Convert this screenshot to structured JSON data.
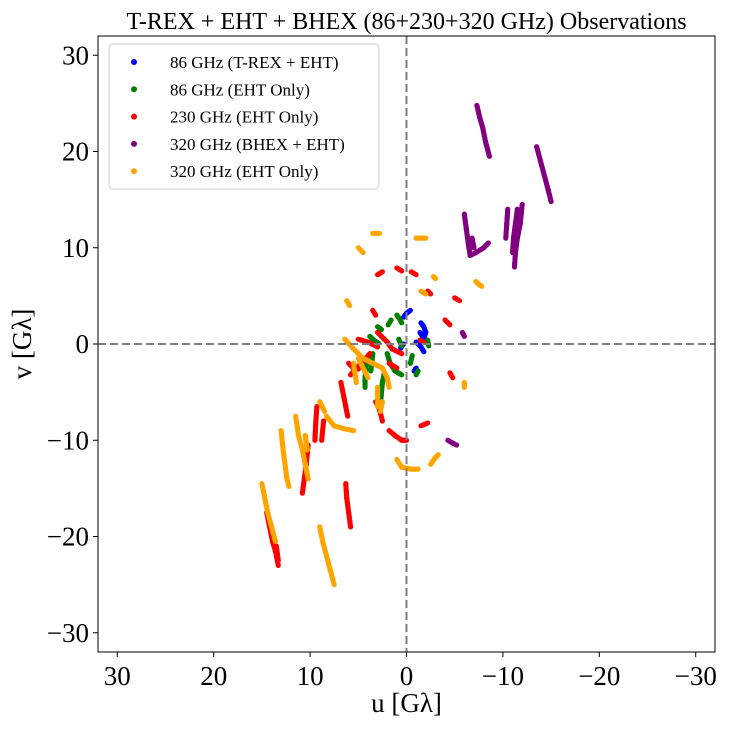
{
  "chart_data": {
    "type": "scatter",
    "title": "T-REX + EHT + BHEX (86+230+320 GHz) Observations",
    "xlabel": "u [Gλ]",
    "ylabel": "v [Gλ]",
    "xlim": [
      32,
      -32
    ],
    "ylim": [
      -32,
      32
    ],
    "xticks": [
      30,
      20,
      10,
      0,
      -10,
      -20,
      -30
    ],
    "yticks": [
      30,
      20,
      10,
      0,
      -10,
      -20,
      -30
    ],
    "xtick_labels": [
      "30",
      "20",
      "10",
      "0",
      "−10",
      "−20",
      "−30"
    ],
    "ytick_labels": [
      "30",
      "20",
      "10",
      "0",
      "−10",
      "−20",
      "−30"
    ],
    "grid": false,
    "reference_lines": [
      {
        "axis": "x",
        "value": 0,
        "style": "dashed"
      },
      {
        "axis": "y",
        "value": 0,
        "style": "dashed"
      }
    ],
    "legend_position": "top-left",
    "series": [
      {
        "name": "86 GHz (T-REX + EHT)",
        "color": "#0000ff",
        "tracks": [
          [
            [
              -1.5,
              2.2
            ],
            [
              -1.8,
              1.8
            ],
            [
              -2.0,
              1.2
            ],
            [
              -1.8,
              0.6
            ]
          ],
          [
            [
              -0.4,
              3.5
            ],
            [
              0.0,
              3.2
            ],
            [
              0.3,
              2.8
            ]
          ],
          [
            [
              -1.0,
              0.2
            ],
            [
              -1.5,
              -0.3
            ],
            [
              -1.8,
              -0.8
            ]
          ],
          [
            [
              -0.8,
              -2.8
            ],
            [
              -1.0,
              -2.5
            ]
          ],
          [
            [
              -1.4,
              1.2
            ],
            [
              -1.6,
              0.9
            ],
            [
              -1.7,
              0.7
            ]
          ],
          [
            [
              0.3,
              0.0
            ],
            [
              0.6,
              -0.4
            ]
          ]
        ]
      },
      {
        "name": "86 GHz (EHT Only)",
        "color": "#008000",
        "tracks": [
          [
            [
              1.0,
              3.0
            ],
            [
              0.7,
              2.6
            ],
            [
              0.5,
              2.2
            ]
          ],
          [
            [
              3.8,
              0.8
            ],
            [
              3.4,
              0.4
            ],
            [
              2.9,
              0.1
            ]
          ],
          [
            [
              4.1,
              -1.5
            ],
            [
              4.2,
              -2.5
            ],
            [
              4.3,
              -3.5
            ],
            [
              4.3,
              -4.5
            ]
          ],
          [
            [
              3.5,
              -1.0
            ],
            [
              3.6,
              -2.0
            ],
            [
              3.7,
              -2.8
            ]
          ],
          [
            [
              2.3,
              -3.0
            ],
            [
              2.5,
              -4.0
            ],
            [
              2.6,
              -5.0
            ],
            [
              2.7,
              -6.5
            ]
          ],
          [
            [
              2.0,
              -1.0
            ],
            [
              1.7,
              -2.0
            ],
            [
              1.2,
              -2.8
            ],
            [
              0.5,
              -3.2
            ]
          ],
          [
            [
              1.9,
              2.0
            ],
            [
              1.6,
              2.5
            ]
          ],
          [
            [
              0.8,
              0.5
            ],
            [
              0.5,
              -0.2
            ]
          ],
          [
            [
              -0.6,
              -1.2
            ],
            [
              -0.4,
              -2.0
            ]
          ],
          [
            [
              -2.2,
              0.4
            ],
            [
              -2.3,
              -0.2
            ]
          ],
          [
            [
              3.0,
              1.8
            ],
            [
              2.6,
              1.5
            ]
          ],
          [
            [
              -1.2,
              -2.8
            ],
            [
              -1.0,
              -3.2
            ]
          ]
        ]
      },
      {
        "name": "230 GHz (EHT Only)",
        "color": "#ff0000",
        "tracks": [
          [
            [
              14.5,
              -17.5
            ],
            [
              14.2,
              -19.0
            ],
            [
              13.9,
              -20.5
            ],
            [
              13.6,
              -21.5
            ],
            [
              13.3,
              -23.0
            ]
          ],
          [
            [
              13.5,
              -21.0
            ],
            [
              13.3,
              -22.5
            ]
          ],
          [
            [
              10.2,
              -10.5
            ],
            [
              10.4,
              -12.5
            ],
            [
              10.6,
              -14.0
            ],
            [
              10.8,
              -15.5
            ]
          ],
          [
            [
              9.3,
              -6.5
            ],
            [
              9.4,
              -8.0
            ],
            [
              9.5,
              -10.0
            ]
          ],
          [
            [
              8.6,
              -8.0
            ],
            [
              8.8,
              -10.0
            ]
          ],
          [
            [
              6.3,
              -14.5
            ],
            [
              6.2,
              -16.0
            ],
            [
              6.0,
              -17.5
            ],
            [
              5.8,
              -19.0
            ]
          ],
          [
            [
              6.8,
              -4.0
            ],
            [
              6.5,
              -5.5
            ],
            [
              6.3,
              -6.5
            ],
            [
              6.1,
              -7.5
            ]
          ],
          [
            [
              5.8,
              -3.2
            ],
            [
              5.2,
              -2.5
            ],
            [
              4.5,
              -1.8
            ],
            [
              3.8,
              -1.0
            ]
          ],
          [
            [
              5.0,
              0.5
            ],
            [
              4.0,
              0.2
            ],
            [
              3.0,
              -0.3
            ]
          ],
          [
            [
              3.5,
              3.5
            ],
            [
              3.2,
              3.0
            ]
          ],
          [
            [
              3.2,
              -6.0
            ],
            [
              2.9,
              -6.5
            ],
            [
              2.7,
              -7.2
            ],
            [
              2.5,
              -8.0
            ]
          ],
          [
            [
              1.8,
              -9.0
            ],
            [
              1.2,
              -9.5
            ],
            [
              0.5,
              -10.0
            ],
            [
              0.0,
              -10.0
            ]
          ],
          [
            [
              -1.5,
              -8.5
            ],
            [
              -2.2,
              -8.2
            ]
          ],
          [
            [
              -2.2,
              5.5
            ],
            [
              -2.5,
              5.2
            ]
          ],
          [
            [
              -5.0,
              4.8
            ],
            [
              -5.5,
              4.5
            ]
          ],
          [
            [
              -4.0,
              2.5
            ],
            [
              -4.5,
              2.0
            ]
          ],
          [
            [
              -4.5,
              -3.0
            ],
            [
              -4.8,
              -3.5
            ]
          ],
          [
            [
              3.0,
              7.2
            ],
            [
              2.5,
              7.5
            ]
          ],
          [
            [
              1.0,
              7.9
            ],
            [
              0.5,
              7.6
            ]
          ],
          [
            [
              -0.5,
              7.5
            ],
            [
              -1.0,
              7.2
            ]
          ],
          [
            [
              3.0,
              1.2
            ],
            [
              2.0,
              0.2
            ],
            [
              1.5,
              -0.5
            ],
            [
              0.5,
              -1.0
            ]
          ],
          [
            [
              1.8,
              -2.0
            ],
            [
              1.0,
              -2.5
            ]
          ],
          [
            [
              -1.4,
              0.4
            ],
            [
              -1.8,
              0.2
            ]
          ],
          [
            [
              6.0,
              -2.0
            ],
            [
              5.5,
              -2.5
            ],
            [
              5.0,
              -2.6
            ]
          ]
        ]
      },
      {
        "name": "320 GHz (BHEX + EHT)",
        "color": "#800080",
        "tracks": [
          [
            [
              -7.3,
              24.8
            ],
            [
              -7.6,
              23.5
            ],
            [
              -7.9,
              22.5
            ],
            [
              -8.2,
              21.0
            ],
            [
              -8.6,
              19.5
            ]
          ],
          [
            [
              -13.5,
              20.5
            ],
            [
              -13.9,
              19.0
            ],
            [
              -14.3,
              17.5
            ],
            [
              -14.7,
              16.0
            ],
            [
              -15.0,
              14.8
            ]
          ],
          [
            [
              -12.0,
              14.5
            ],
            [
              -11.8,
              12.5
            ],
            [
              -11.5,
              11.0
            ],
            [
              -11.3,
              9.5
            ],
            [
              -11.2,
              8.0
            ]
          ],
          [
            [
              -11.5,
              14.0
            ],
            [
              -11.3,
              12.5
            ],
            [
              -11.1,
              11.0
            ],
            [
              -11.0,
              9.5
            ]
          ],
          [
            [
              -10.5,
              14.0
            ],
            [
              -10.4,
              12.5
            ],
            [
              -10.3,
              11.0
            ]
          ],
          [
            [
              -6.0,
              13.5
            ],
            [
              -6.2,
              12.0
            ],
            [
              -6.4,
              10.5
            ],
            [
              -6.6,
              9.2
            ],
            [
              -7.2,
              9.5
            ],
            [
              -8.0,
              10.0
            ],
            [
              -8.5,
              10.5
            ]
          ],
          [
            [
              -6.8,
              11.0
            ],
            [
              -7.0,
              10.0
            ]
          ],
          [
            [
              -5.8,
              1.2
            ],
            [
              -6.0,
              0.8
            ]
          ],
          [
            [
              -4.3,
              -10.0
            ],
            [
              -4.8,
              -10.3
            ],
            [
              -5.2,
              -10.5
            ]
          ]
        ]
      },
      {
        "name": "320 GHz (EHT Only)",
        "color": "#ffa500",
        "tracks": [
          [
            [
              15.0,
              -14.5
            ],
            [
              14.7,
              -16.0
            ],
            [
              14.4,
              -17.5
            ],
            [
              14.0,
              -19.0
            ],
            [
              13.6,
              -20.5
            ]
          ],
          [
            [
              13.0,
              -9.0
            ],
            [
              12.8,
              -11.0
            ],
            [
              12.6,
              -12.5
            ],
            [
              12.4,
              -14.0
            ],
            [
              12.2,
              -14.8
            ]
          ],
          [
            [
              11.5,
              -7.5
            ],
            [
              11.2,
              -9.5
            ],
            [
              10.8,
              -11.0
            ],
            [
              10.5,
              -12.5
            ],
            [
              10.2,
              -14.0
            ]
          ],
          [
            [
              10.5,
              -9.5
            ],
            [
              10.3,
              -11.0
            ]
          ],
          [
            [
              9.0,
              -19.0
            ],
            [
              8.7,
              -20.5
            ],
            [
              8.3,
              -22.0
            ],
            [
              7.9,
              -23.5
            ],
            [
              7.5,
              -25.0
            ]
          ],
          [
            [
              8.3,
              -7.5
            ],
            [
              7.5,
              -8.5
            ],
            [
              6.5,
              -8.8
            ],
            [
              5.5,
              -9.0
            ]
          ],
          [
            [
              9.0,
              -6.0
            ],
            [
              8.5,
              -7.0
            ]
          ],
          [
            [
              6.2,
              4.5
            ],
            [
              5.9,
              4.0
            ]
          ],
          [
            [
              6.4,
              0.5
            ],
            [
              5.5,
              -0.5
            ],
            [
              4.5,
              -1.5
            ],
            [
              3.5,
              -2.0
            ],
            [
              2.5,
              -2.5
            ]
          ],
          [
            [
              5.0,
              -1.5
            ],
            [
              4.5,
              -2.5
            ],
            [
              4.0,
              -3.5
            ]
          ],
          [
            [
              5.5,
              -2.0
            ],
            [
              5.2,
              -4.0
            ]
          ],
          [
            [
              3.5,
              11.5
            ],
            [
              2.8,
              11.5
            ]
          ],
          [
            [
              5.0,
              10.0
            ],
            [
              4.5,
              9.5
            ]
          ],
          [
            [
              -1.0,
              11.0
            ],
            [
              -2.0,
              11.0
            ]
          ],
          [
            [
              -2.8,
              7.0
            ],
            [
              -3.0,
              6.8
            ]
          ],
          [
            [
              -1.5,
              5.5
            ],
            [
              -2.0,
              5.2
            ]
          ],
          [
            [
              -7.2,
              6.5
            ],
            [
              -7.5,
              6.2
            ],
            [
              -7.8,
              6.0
            ]
          ],
          [
            [
              -6.0,
              -4.5
            ],
            [
              -6.0,
              -4.0
            ]
          ],
          [
            [
              -2.5,
              -12.5
            ],
            [
              -3.0,
              -11.8
            ],
            [
              -3.3,
              -11.5
            ]
          ],
          [
            [
              1.0,
              -12.0
            ],
            [
              0.5,
              -12.8
            ],
            [
              -0.5,
              -13.0
            ],
            [
              -1.2,
              -13.0
            ]
          ],
          [
            [
              2.5,
              -2.5
            ],
            [
              2.0,
              -3.5
            ],
            [
              1.8,
              -4.5
            ]
          ],
          [
            [
              3.0,
              -4.5
            ],
            [
              3.0,
              -6.5
            ]
          ],
          [
            [
              2.5,
              -6.0
            ],
            [
              2.7,
              -7.0
            ]
          ]
        ]
      }
    ]
  }
}
